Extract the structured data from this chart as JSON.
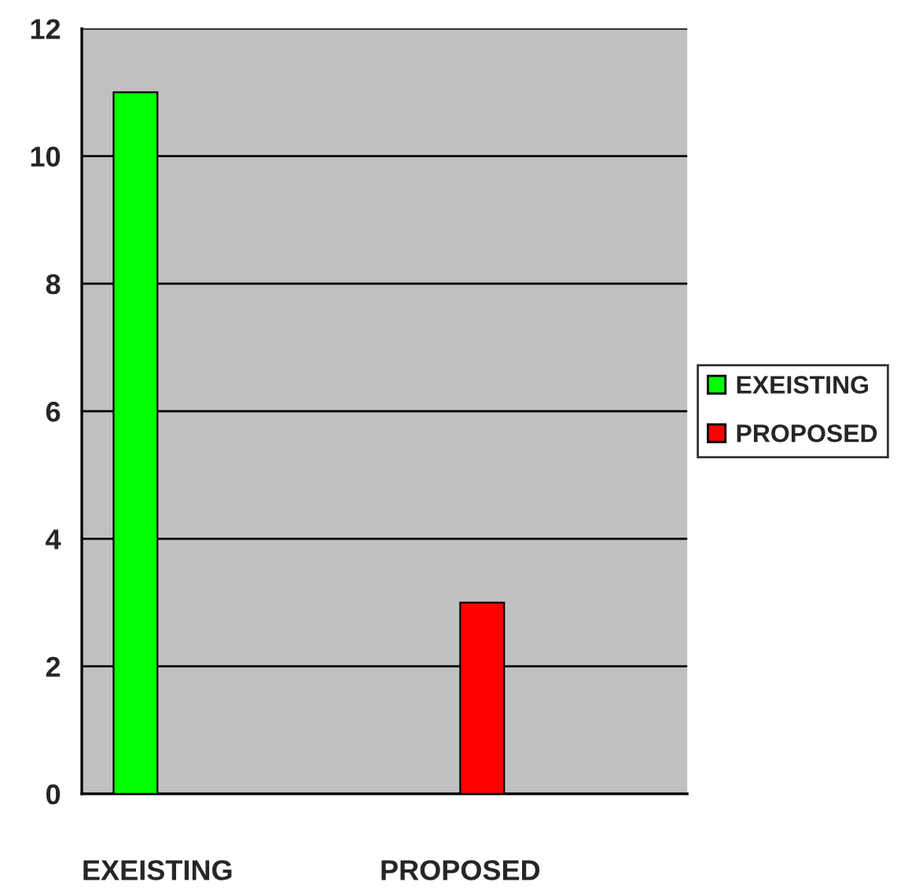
{
  "chart_data": {
    "type": "bar",
    "categories": [
      "EXEISTING",
      null,
      "PROPOSED",
      null
    ],
    "series": [
      {
        "name": "EXEISTING",
        "color": "#00ff00",
        "values": [
          11,
          null,
          null,
          null
        ]
      },
      {
        "name": "PROPOSED",
        "color": "#ff0000",
        "values": [
          null,
          null,
          3,
          null
        ]
      }
    ],
    "ylim": [
      0,
      12
    ],
    "yticks": [
      0,
      2,
      4,
      6,
      8,
      10,
      12
    ],
    "grid": "y",
    "legend": "right"
  }
}
